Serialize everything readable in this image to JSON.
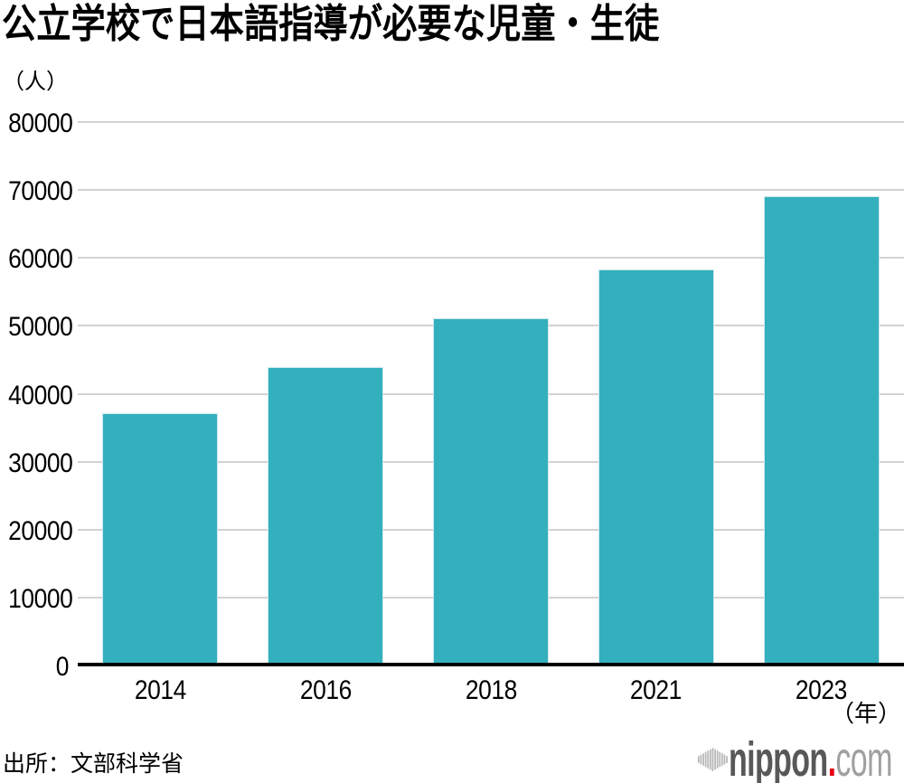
{
  "header": {
    "title": "公立学校で日本語指導が必要な児童・生徒"
  },
  "chart_data": {
    "type": "bar",
    "title": "公立学校で日本語指導が必要な児童・生徒",
    "unit_label": "（人）",
    "x_unit_label": "（年）",
    "categories": [
      "2014",
      "2016",
      "2018",
      "2021",
      "2023"
    ],
    "values": [
      37095,
      43947,
      51126,
      58307,
      69123
    ],
    "ylim": [
      0,
      80000
    ],
    "yticks": [
      0,
      10000,
      20000,
      30000,
      40000,
      50000,
      60000,
      70000,
      80000
    ],
    "grid": true,
    "legend_position": "none",
    "bar_color": "#34AFBD"
  },
  "footer": {
    "source": "出所：文部科学省",
    "logo": {
      "icon": "waveform-bars-icon",
      "brand": "nippon",
      "dot": ".",
      "tld": "com"
    }
  },
  "colors": {
    "bar": "#34AFBD",
    "bar_edge": "#CDE9ED",
    "grid": "#D2D2D2",
    "axis": "#000000",
    "text": "#000000",
    "logo_brand": "#595757",
    "logo_tld": "#9FA0A0",
    "logo_dot": "#E60012",
    "logo_icon": "#B5B5B6"
  }
}
